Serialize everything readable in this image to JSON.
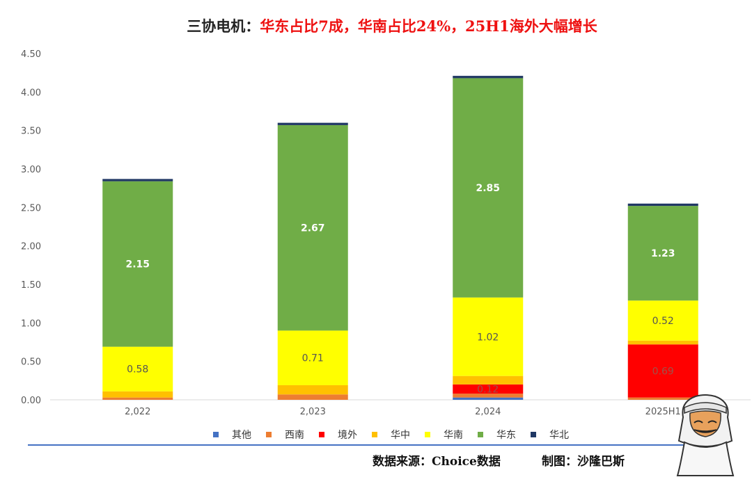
{
  "chart_data": {
    "type": "bar",
    "stacked": true,
    "title_prefix": "三协电机：",
    "title_highlight": "华东占比7成，华南占比24%，25H1海外大幅增长",
    "categories": [
      "2,022",
      "2,023",
      "2,024",
      "2025H1"
    ],
    "ylim": [
      0,
      4.5
    ],
    "yticks": [
      "0.00",
      "0.50",
      "1.00",
      "1.50",
      "2.00",
      "2.50",
      "3.00",
      "3.50",
      "4.00",
      "4.50"
    ],
    "ytick_values": [
      0,
      0.5,
      1.0,
      1.5,
      2.0,
      2.5,
      3.0,
      3.5,
      4.0,
      4.5
    ],
    "grid": false,
    "legend_position": "bottom",
    "series": [
      {
        "name": "其他",
        "color": "#4472c4",
        "values": [
          0.0,
          0.0,
          0.03,
          0.0
        ],
        "labels": [
          null,
          null,
          null,
          null
        ]
      },
      {
        "name": "西南",
        "color": "#ed7d31",
        "values": [
          0.03,
          0.07,
          0.05,
          0.03
        ],
        "labels": [
          null,
          null,
          null,
          null
        ]
      },
      {
        "name": "境外",
        "color": "#ff0000",
        "values": [
          0.0,
          0.0,
          0.12,
          0.69
        ],
        "labels": [
          null,
          null,
          "0.12",
          "0.69"
        ]
      },
      {
        "name": "华中",
        "color": "#ffc000",
        "values": [
          0.08,
          0.12,
          0.11,
          0.05
        ],
        "labels": [
          null,
          null,
          null,
          null
        ]
      },
      {
        "name": "华南",
        "color": "#ffff00",
        "values": [
          0.58,
          0.71,
          1.02,
          0.52
        ],
        "labels": [
          "0.58",
          "0.71",
          "1.02",
          "0.52"
        ]
      },
      {
        "name": "华东",
        "color": "#70ad47",
        "values": [
          2.15,
          2.67,
          2.85,
          1.23
        ],
        "labels": [
          "2.15",
          "2.67",
          "2.85",
          "1.23"
        ]
      },
      {
        "name": "华北",
        "color": "#203864",
        "values": [
          0.03,
          0.03,
          0.03,
          0.03
        ],
        "labels": [
          null,
          null,
          null,
          null
        ]
      }
    ]
  },
  "footer": {
    "source": "数据来源：Choice数据",
    "author": "制图：沙隆巴斯"
  },
  "colors": {
    "footer_rule": "#4472c4",
    "label_light": "#ffffff",
    "label_dark": "#555555"
  },
  "mascot_icon": "cartoon-man-with-headscarf"
}
